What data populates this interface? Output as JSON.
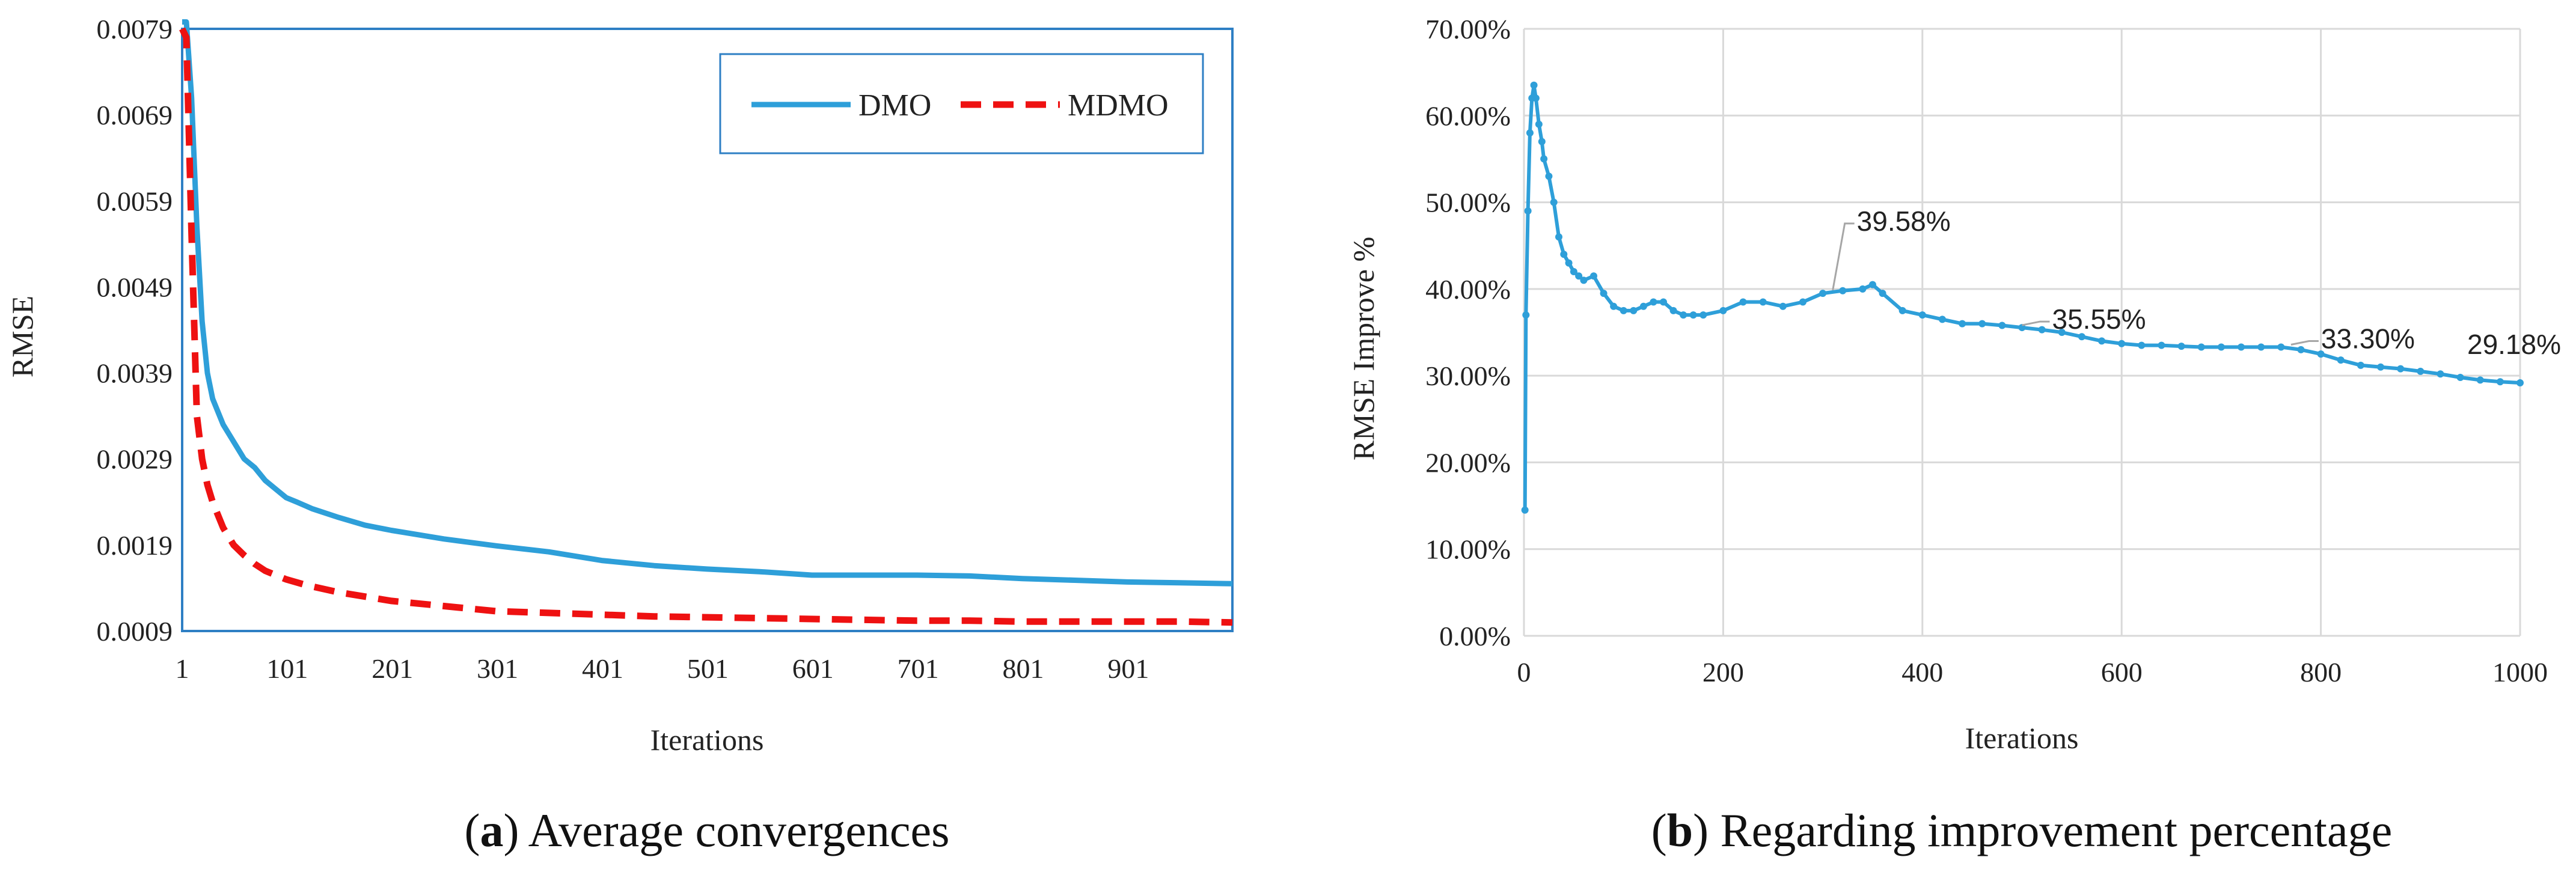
{
  "chart_data": [
    {
      "type": "line",
      "caption_letter": "a",
      "caption_rest": " Average convergences",
      "xlabel": "Iterations",
      "ylabel": "RMSE",
      "x_ticks": [
        "1",
        "101",
        "201",
        "301",
        "401",
        "501",
        "601",
        "701",
        "801",
        "901"
      ],
      "y_ticks": [
        "0.0079",
        "0.0069",
        "0.0059",
        "0.0049",
        "0.0039",
        "0.0029",
        "0.0019",
        "0.0009"
      ],
      "xlim": [
        1,
        1000
      ],
      "ylim": [
        0.0009,
        0.0079
      ],
      "grid": false,
      "legend_position": "top-right",
      "colors": {
        "DMO": "#2e9fd9",
        "MDMO": "#ee1111",
        "frame": "#2e7fc4"
      },
      "series": [
        {
          "name": "DMO",
          "style": "solid",
          "x": [
            1,
            5,
            10,
            15,
            20,
            25,
            30,
            40,
            50,
            60,
            70,
            80,
            90,
            100,
            110,
            125,
            150,
            175,
            200,
            250,
            300,
            350,
            400,
            450,
            500,
            550,
            600,
            650,
            700,
            750,
            800,
            850,
            900,
            950,
            1000
          ],
          "y": [
            0.0095,
            0.0083,
            0.0071,
            0.0056,
            0.0045,
            0.0039,
            0.0036,
            0.0033,
            0.0031,
            0.0029,
            0.0028,
            0.00265,
            0.00255,
            0.00245,
            0.0024,
            0.00232,
            0.00222,
            0.00213,
            0.00207,
            0.00197,
            0.00189,
            0.00182,
            0.00172,
            0.00166,
            0.00162,
            0.00159,
            0.00155,
            0.00155,
            0.00155,
            0.00154,
            0.00151,
            0.00149,
            0.00147,
            0.00146,
            0.00145
          ]
        },
        {
          "name": "MDMO",
          "style": "dashed",
          "x": [
            1,
            5,
            10,
            15,
            20,
            25,
            30,
            40,
            50,
            60,
            70,
            80,
            90,
            100,
            120,
            150,
            200,
            250,
            300,
            350,
            400,
            450,
            500,
            550,
            600,
            650,
            700,
            750,
            800,
            850,
            900,
            950,
            1000
          ],
          "y": [
            0.0079,
            0.0078,
            0.0055,
            0.0034,
            0.0029,
            0.0026,
            0.0024,
            0.0021,
            0.0019,
            0.00178,
            0.00168,
            0.0016,
            0.00155,
            0.0015,
            0.00143,
            0.00135,
            0.00125,
            0.00119,
            0.00113,
            0.00111,
            0.00109,
            0.00107,
            0.00106,
            0.00105,
            0.00104,
            0.00103,
            0.00102,
            0.00102,
            0.00101,
            0.00101,
            0.00101,
            0.00101,
            0.001
          ]
        }
      ]
    },
    {
      "type": "line",
      "caption_letter": "b",
      "caption_rest": " Regarding improvement percentage",
      "xlabel": "Iterations",
      "ylabel": "RMSE Improve %",
      "x_ticks": [
        "0",
        "200",
        "400",
        "600",
        "800",
        "1000"
      ],
      "y_ticks": [
        "70.00%",
        "60.00%",
        "50.00%",
        "40.00%",
        "30.00%",
        "20.00%",
        "10.00%",
        "0.00%"
      ],
      "xlim": [
        0,
        1000
      ],
      "ylim": [
        0,
        70
      ],
      "grid": true,
      "colors": {
        "line": "#2e9fd9",
        "grid": "#d9d9d9",
        "leader": "#a6a6a6"
      },
      "series": [
        {
          "x": [
            1,
            2,
            4,
            6,
            8,
            10,
            12,
            15,
            18,
            20,
            25,
            30,
            35,
            40,
            45,
            50,
            55,
            60,
            70,
            80,
            90,
            100,
            110,
            120,
            130,
            140,
            150,
            160,
            170,
            180,
            200,
            220,
            240,
            260,
            280,
            300,
            320,
            340,
            350,
            360,
            380,
            400,
            420,
            440,
            460,
            480,
            500,
            520,
            540,
            560,
            580,
            600,
            620,
            640,
            660,
            680,
            700,
            720,
            740,
            760,
            780,
            800,
            820,
            840,
            860,
            880,
            900,
            920,
            940,
            960,
            980,
            1000
          ],
          "y": [
            14.5,
            37,
            49,
            58,
            62,
            63.5,
            62,
            59,
            57,
            55,
            53,
            50,
            46,
            44,
            43,
            42,
            41.5,
            41,
            41.5,
            39.5,
            38,
            37.5,
            37.5,
            38,
            38.5,
            38.5,
            37.5,
            37,
            37,
            37,
            37.5,
            38.5,
            38.5,
            38,
            38.5,
            39.5,
            39.8,
            40,
            40.5,
            39.5,
            37.5,
            37,
            36.5,
            36,
            36,
            35.8,
            35.55,
            35.3,
            35,
            34.5,
            34,
            33.7,
            33.5,
            33.5,
            33.4,
            33.3,
            33.3,
            33.3,
            33.3,
            33.3,
            33,
            32.5,
            31.8,
            31.2,
            31,
            30.8,
            30.5,
            30.2,
            29.8,
            29.5,
            29.3,
            29.18
          ]
        }
      ],
      "annotations": [
        {
          "text": "39.58%",
          "x": 310,
          "y": 39.58
        },
        {
          "text": "35.55%",
          "x": 500,
          "y": 35.55
        },
        {
          "text": "33.30%",
          "x": 770,
          "y": 33.3
        },
        {
          "text": "29.18%",
          "x": 1000,
          "y": 29.18
        }
      ]
    }
  ]
}
